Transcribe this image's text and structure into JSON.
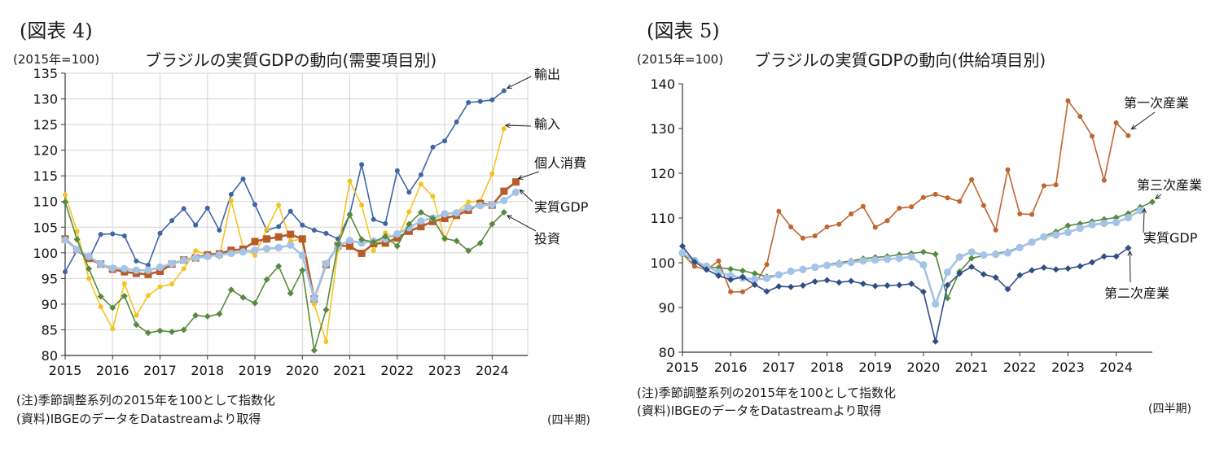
{
  "chart_data": [
    {
      "type": "line",
      "figure_no": "(図表 4)",
      "base_label": "(2015年=100)",
      "title": "ブラジルの実質GDPの動向(需要項目別)",
      "xlabel": "",
      "ylabel": "",
      "ylim": [
        80,
        135
      ],
      "yticks": [
        "80",
        "85",
        "90",
        "95",
        "100",
        "105",
        "110",
        "115",
        "120",
        "125",
        "130",
        "135"
      ],
      "x_start": 2015.0,
      "x_step": 0.25,
      "xlim": [
        2015,
        2024.75
      ],
      "xticks": [
        "2015",
        "2016",
        "2017",
        "2018",
        "2019",
        "2020",
        "2021",
        "2022",
        "2023",
        "2024"
      ],
      "grid": true,
      "note1": "(注)季節調整系列の2015年を100として指数化",
      "note2": "(資料)IBGEのデータをDatastreamより取得",
      "quarter_label": "(四半期)",
      "series": [
        {
          "name": "輸出",
          "color": "#3e66a7",
          "marker": "circle",
          "values": [
            96.3,
            100.5,
            98.7,
            103.6,
            103.7,
            103.3,
            98.4,
            97.6,
            103.8,
            106.3,
            108.6,
            105.4,
            108.7,
            104.4,
            111.4,
            114.4,
            109.4,
            104.4,
            105.1,
            108.1,
            105.4,
            104.4,
            103.8,
            102.7,
            107.5,
            117.2,
            106.5,
            105.7,
            116.0,
            111.8,
            115.2,
            120.6,
            121.8,
            125.5,
            129.3,
            129.5,
            129.8,
            131.6
          ]
        },
        {
          "name": "輸入",
          "color": "#f5c31f",
          "marker": "circle",
          "values": [
            111.3,
            104.2,
            95.0,
            89.5,
            85.2,
            94.0,
            87.8,
            91.7,
            93.4,
            93.9,
            96.9,
            100.4,
            99.7,
            99.2,
            110.2,
            101.0,
            99.5,
            104.6,
            109.3,
            102.3,
            102.7,
            90.0,
            82.7,
            100.6,
            114.0,
            109.3,
            100.4,
            103.9,
            102.7,
            108.0,
            113.4,
            111.0,
            102.6,
            107.9,
            109.9,
            110.1,
            115.4,
            124.2
          ]
        },
        {
          "name": "個人消費",
          "color": "#b75c29",
          "marker": "square",
          "values": [
            102.7,
            100.6,
            98.9,
            97.8,
            96.8,
            96.3,
            96.0,
            95.8,
            96.4,
            97.8,
            98.6,
            99.0,
            99.6,
            99.8,
            100.5,
            100.7,
            102.2,
            102.7,
            103.1,
            103.6,
            102.7,
            91.0,
            97.7,
            101.4,
            101.3,
            99.9,
            101.8,
            101.9,
            102.9,
            104.2,
            105.1,
            106.1,
            106.7,
            107.3,
            108.3,
            109.6,
            109.3,
            112.0,
            113.8
          ]
        },
        {
          "name": "実質GDP",
          "color": "#a3c4e6",
          "marker": "circle",
          "values": [
            102.5,
            100.6,
            99.3,
            97.8,
            97.0,
            96.9,
            96.6,
            96.6,
            97.2,
            97.9,
            98.5,
            99.0,
            99.3,
            99.6,
            99.9,
            100.2,
            100.5,
            100.8,
            101.0,
            101.5,
            99.5,
            91.0,
            97.9,
            101.3,
            102.4,
            101.9,
            102.3,
            102.7,
            103.7,
            104.9,
            106.2,
            106.8,
            107.6,
            107.8,
            108.8,
            109.2,
            109.4,
            110.2,
            111.8
          ]
        },
        {
          "name": "投資",
          "color": "#568a3e",
          "marker": "diamond",
          "values": [
            109.9,
            102.6,
            96.9,
            91.5,
            89.3,
            91.6,
            86.0,
            84.4,
            84.8,
            84.6,
            85.0,
            87.8,
            87.6,
            88.1,
            92.8,
            91.3,
            90.2,
            94.8,
            97.4,
            92.1,
            96.6,
            81.0,
            88.9,
            101.6,
            107.4,
            102.6,
            102.1,
            103.2,
            101.3,
            105.6,
            107.9,
            106.7,
            102.8,
            102.3,
            100.4,
            101.9,
            105.6,
            107.9
          ]
        }
      ],
      "annotations": [
        "輸出",
        "輸入",
        "個人消費",
        "実質GDP",
        "投資"
      ]
    },
    {
      "type": "line",
      "figure_no": "(図表 5)",
      "base_label": "(2015年=100)",
      "title": "ブラジルの実質GDPの動向(供給項目別)",
      "xlabel": "",
      "ylabel": "",
      "ylim": [
        80,
        140
      ],
      "yticks": [
        "80",
        "90",
        "100",
        "110",
        "120",
        "130",
        "140"
      ],
      "x_start": 2015.0,
      "x_step": 0.25,
      "xlim": [
        2015,
        2024.75
      ],
      "xticks": [
        "2015",
        "2016",
        "2017",
        "2018",
        "2019",
        "2020",
        "2021",
        "2022",
        "2023",
        "2024"
      ],
      "grid": false,
      "note1": "(注)季節調整系列の2015年を100として指数化",
      "note2": "(資料)IBGEのデータをDatastreamより取得",
      "quarter_label": "(四半期)",
      "series": [
        {
          "name": "第一次産業",
          "color": "#c0652e",
          "marker": "circle",
          "values": [
            102.0,
            99.2,
            98.4,
            100.4,
            93.5,
            93.5,
            95.1,
            99.6,
            111.5,
            108.0,
            105.5,
            106.0,
            108.0,
            108.6,
            110.9,
            112.6,
            107.9,
            109.4,
            112.2,
            112.5,
            114.6,
            115.3,
            114.5,
            113.7,
            118.6,
            112.8,
            107.3,
            120.8,
            110.9,
            110.8,
            117.2,
            117.4,
            136.2,
            132.7,
            128.3,
            118.4,
            131.3,
            128.4
          ]
        },
        {
          "name": "第三次産業",
          "color": "#568a3e",
          "marker": "diamond",
          "values": [
            101.8,
            100.4,
            99.0,
            98.9,
            98.6,
            98.2,
            97.6,
            96.9,
            97.3,
            98.1,
            98.6,
            99.0,
            99.6,
            100.0,
            100.4,
            100.9,
            101.2,
            101.4,
            101.8,
            102.1,
            102.4,
            101.9,
            92.1,
            98.0,
            101.0,
            101.6,
            102.1,
            102.5,
            103.5,
            104.7,
            105.9,
            106.9,
            108.3,
            108.7,
            109.2,
            109.7,
            110.1,
            111.0,
            112.4,
            113.6
          ]
        },
        {
          "name": "実質GDP",
          "color": "#a3c4e6",
          "marker": "circle",
          "values": [
            102.2,
            100.5,
            99.2,
            97.9,
            97.1,
            96.6,
            96.3,
            96.5,
            97.3,
            98.1,
            98.5,
            99.0,
            99.4,
            99.7,
            100.1,
            100.4,
            100.6,
            100.8,
            101.0,
            101.3,
            99.5,
            90.8,
            97.9,
            101.3,
            102.4,
            101.7,
            101.9,
            102.2,
            103.4,
            104.6,
            105.8,
            106.2,
            106.8,
            107.7,
            108.5,
            108.8,
            109.0,
            110.1,
            111.7
          ]
        },
        {
          "name": "第二次産業",
          "color": "#2f4d86",
          "marker": "diamond",
          "values": [
            103.7,
            100.2,
            98.5,
            97.1,
            96.2,
            96.8,
            95.1,
            93.6,
            94.7,
            94.6,
            94.9,
            95.8,
            96.1,
            95.6,
            95.9,
            95.3,
            94.8,
            94.9,
            95.0,
            95.3,
            93.5,
            82.4,
            95.0,
            97.6,
            99.1,
            97.4,
            96.7,
            94.1,
            97.2,
            98.3,
            98.9,
            98.5,
            98.7,
            99.2,
            100.1,
            101.4,
            101.4,
            103.3
          ]
        }
      ],
      "annotations": [
        "第一次産業",
        "第三次産業",
        "実質GDP",
        "第二次産業"
      ]
    }
  ]
}
